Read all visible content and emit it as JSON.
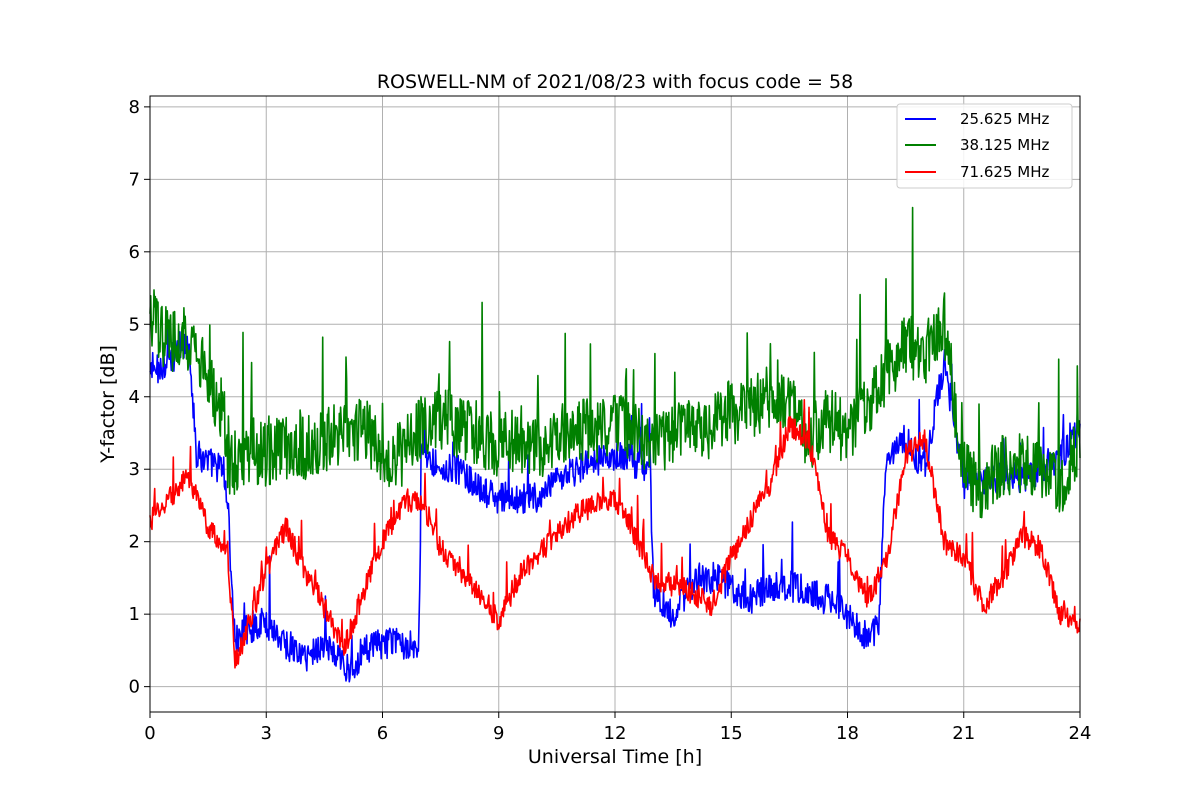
{
  "chart_data": {
    "type": "line",
    "title": "ROSWELL-NM of 2021/08/23 with focus code = 58",
    "xlabel": "Universal Time [h]",
    "ylabel": "Y-factor [dB]",
    "xlim": [
      0,
      24
    ],
    "ylim": [
      -0.35,
      8.15
    ],
    "xticks": [
      0,
      3,
      6,
      9,
      12,
      15,
      18,
      21,
      24
    ],
    "yticks": [
      0,
      1,
      2,
      3,
      4,
      5,
      6,
      7,
      8
    ],
    "grid": true,
    "legend_position": "top-right",
    "series": [
      {
        "name": "25.625 MHz",
        "color": "#0000ff",
        "noise": 0.22,
        "x": [
          0,
          0.5,
          1.0,
          1.2,
          1.5,
          1.9,
          2.0,
          2.2,
          2.5,
          3.0,
          3.5,
          4.0,
          4.5,
          5.0,
          5.2,
          5.5,
          6.0,
          6.5,
          6.95,
          7.0,
          7.5,
          8.0,
          8.5,
          9.0,
          9.5,
          10.0,
          10.5,
          11.0,
          11.5,
          12.0,
          12.5,
          12.9,
          13.0,
          13.5,
          14.0,
          14.5,
          15.0,
          15.5,
          16.0,
          16.5,
          17.0,
          17.5,
          18.0,
          18.5,
          18.8,
          19.0,
          19.5,
          20.0,
          20.5,
          21.0,
          21.5,
          22.0,
          22.5,
          23.0,
          23.5,
          24.0
        ],
        "y": [
          4.3,
          4.5,
          4.8,
          3.2,
          3.1,
          3.0,
          2.5,
          0.6,
          0.8,
          0.9,
          0.6,
          0.4,
          0.6,
          0.3,
          0.25,
          0.5,
          0.6,
          0.6,
          0.6,
          3.3,
          3.0,
          3.0,
          2.7,
          2.6,
          2.6,
          2.6,
          2.8,
          3.0,
          3.1,
          3.2,
          3.1,
          3.0,
          1.3,
          1.0,
          1.4,
          1.5,
          1.4,
          1.2,
          1.4,
          1.4,
          1.3,
          1.2,
          1.0,
          0.7,
          0.8,
          3.2,
          3.4,
          3.0,
          4.5,
          2.8,
          2.8,
          2.9,
          2.9,
          3.0,
          3.2,
          3.5
        ]
      },
      {
        "name": "38.125 MHz",
        "color": "#008000",
        "noise": 0.45,
        "x": [
          0,
          0.5,
          1.0,
          1.5,
          1.9,
          2.0,
          2.5,
          3.0,
          3.5,
          4.0,
          4.5,
          5.0,
          5.5,
          6.0,
          6.5,
          7.0,
          7.5,
          8.0,
          8.5,
          9.0,
          9.5,
          10.0,
          10.5,
          11.0,
          11.5,
          12.0,
          12.5,
          13.0,
          13.5,
          14.0,
          14.5,
          15.0,
          15.5,
          16.0,
          16.5,
          17.0,
          17.5,
          18.0,
          18.5,
          19.0,
          19.5,
          20.0,
          20.5,
          21.0,
          21.5,
          22.0,
          22.5,
          23.0,
          23.5,
          24.0
        ],
        "y": [
          5.0,
          4.8,
          4.8,
          4.2,
          3.8,
          3.0,
          3.2,
          3.2,
          3.3,
          3.3,
          3.4,
          3.5,
          3.6,
          3.2,
          3.2,
          3.6,
          3.7,
          3.6,
          3.5,
          3.3,
          3.4,
          3.3,
          3.4,
          3.6,
          3.5,
          3.6,
          3.5,
          3.3,
          3.5,
          3.5,
          3.6,
          3.8,
          3.8,
          4.0,
          3.9,
          3.4,
          3.7,
          3.5,
          3.9,
          4.3,
          4.7,
          4.6,
          5.0,
          3.0,
          2.7,
          3.1,
          3.1,
          3.0,
          2.8,
          3.3
        ]
      },
      {
        "name": "71.625 MHz",
        "color": "#ff0000",
        "noise": 0.16,
        "x": [
          0,
          0.5,
          1.0,
          1.5,
          2.0,
          2.2,
          2.5,
          3.0,
          3.5,
          4.0,
          4.5,
          5.0,
          5.5,
          6.0,
          6.5,
          7.0,
          7.5,
          8.0,
          8.5,
          9.0,
          9.5,
          10.0,
          10.5,
          11.0,
          11.5,
          12.0,
          12.5,
          13.0,
          13.5,
          14.0,
          14.5,
          15.0,
          15.5,
          16.0,
          16.5,
          17.0,
          17.5,
          18.0,
          18.5,
          19.0,
          19.5,
          20.0,
          20.5,
          21.0,
          21.5,
          22.0,
          22.5,
          23.0,
          23.5,
          24.0
        ],
        "y": [
          2.3,
          2.6,
          2.9,
          2.2,
          1.9,
          0.3,
          0.8,
          1.6,
          2.2,
          1.6,
          1.1,
          0.5,
          1.3,
          2.0,
          2.5,
          2.6,
          1.9,
          1.6,
          1.3,
          0.9,
          1.5,
          1.8,
          2.1,
          2.4,
          2.5,
          2.6,
          2.1,
          1.5,
          1.4,
          1.3,
          1.1,
          1.8,
          2.3,
          2.8,
          3.6,
          3.4,
          2.1,
          1.8,
          1.2,
          1.7,
          3.2,
          3.4,
          2.0,
          1.8,
          1.1,
          1.5,
          2.1,
          1.9,
          1.0,
          0.8
        ]
      }
    ]
  }
}
